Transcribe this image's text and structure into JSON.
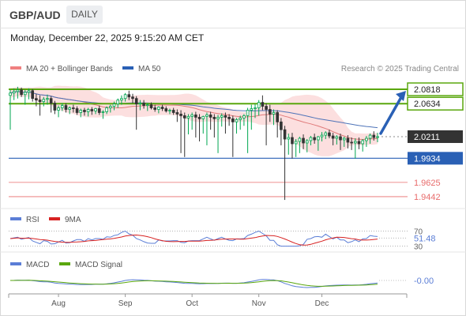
{
  "header": {
    "symbol": "GBP/AUD",
    "period_button": "DAILY"
  },
  "timestamp": "Monday, December 22, 2025 9:15:20 AM CET",
  "legend": {
    "bollinger": "MA 20 + Bollinger Bands",
    "ma50": "MA 50",
    "copyright": "Research © 2025 Trading Central"
  },
  "colors": {
    "bull": "#00a651",
    "bear": "#333333",
    "resistance": "#5aa70e",
    "support": "#2a60b5",
    "dashed": "#e86c6c",
    "band_fill": "#fbd9d9",
    "ma20": "#e07a7a",
    "ma50": "#4e73b8",
    "arrow": "#2a60b5",
    "rsi": "#5b7ed6",
    "rsi9": "#d72222",
    "macd": "#5b7ed6",
    "macd_signal": "#5aa70e"
  },
  "chart_data": [
    {
      "type": "candlestick",
      "title": "GBP/AUD",
      "x_labels": [
        "Aug",
        "Sep",
        "Oct",
        "Nov",
        "Dec"
      ],
      "ylim": [
        1.935,
        2.095
      ],
      "levels": [
        {
          "value": 2.0818,
          "label": "2.0818",
          "kind": "resistance"
        },
        {
          "value": 2.0634,
          "label": "2.0634",
          "kind": "resistance"
        },
        {
          "value": 2.0211,
          "label": "2.0211",
          "kind": "current"
        },
        {
          "value": 1.9934,
          "label": "1.9934",
          "kind": "support"
        },
        {
          "value": 1.9625,
          "label": "1.9625",
          "kind": "dashed"
        },
        {
          "value": 1.9442,
          "label": "1.9442",
          "kind": "dashed"
        }
      ],
      "candles": [
        [
          2.074,
          2.081,
          2.03,
          2.077
        ],
        [
          2.077,
          2.083,
          2.068,
          2.079
        ],
        [
          2.079,
          2.085,
          2.07,
          2.081
        ],
        [
          2.081,
          2.084,
          2.072,
          2.075
        ],
        [
          2.075,
          2.081,
          2.062,
          2.078
        ],
        [
          2.078,
          2.083,
          2.069,
          2.08
        ],
        [
          2.08,
          2.082,
          2.066,
          2.07
        ],
        [
          2.07,
          2.076,
          2.06,
          2.068
        ],
        [
          2.068,
          2.074,
          2.048,
          2.066
        ],
        [
          2.066,
          2.072,
          2.06,
          2.069
        ],
        [
          2.069,
          2.075,
          2.062,
          2.07
        ],
        [
          2.07,
          2.073,
          2.052,
          2.064
        ],
        [
          2.064,
          2.067,
          2.05,
          2.055
        ],
        [
          2.055,
          2.061,
          2.046,
          2.058
        ],
        [
          2.058,
          2.064,
          2.054,
          2.061
        ],
        [
          2.061,
          2.064,
          2.052,
          2.056
        ],
        [
          2.056,
          2.06,
          2.05,
          2.058
        ],
        [
          2.058,
          2.062,
          2.052,
          2.057
        ],
        [
          2.057,
          2.06,
          2.049,
          2.052
        ],
        [
          2.052,
          2.057,
          2.046,
          2.055
        ],
        [
          2.055,
          2.058,
          2.048,
          2.053
        ],
        [
          2.053,
          2.058,
          2.047,
          2.056
        ],
        [
          2.056,
          2.059,
          2.049,
          2.054
        ],
        [
          2.054,
          2.058,
          2.05,
          2.057
        ],
        [
          2.057,
          2.061,
          2.049,
          2.052
        ],
        [
          2.052,
          2.055,
          2.044,
          2.053
        ],
        [
          2.053,
          2.06,
          2.05,
          2.058
        ],
        [
          2.058,
          2.062,
          2.052,
          2.06
        ],
        [
          2.06,
          2.066,
          2.055,
          2.063
        ],
        [
          2.063,
          2.07,
          2.058,
          2.068
        ],
        [
          2.068,
          2.074,
          2.062,
          2.07
        ],
        [
          2.07,
          2.077,
          2.066,
          2.075
        ],
        [
          2.075,
          2.08,
          2.068,
          2.072
        ],
        [
          2.072,
          2.076,
          2.064,
          2.07
        ],
        [
          2.07,
          2.073,
          2.03,
          2.063
        ],
        [
          2.063,
          2.068,
          2.055,
          2.064
        ],
        [
          2.064,
          2.068,
          2.057,
          2.061
        ],
        [
          2.061,
          2.064,
          2.054,
          2.062
        ],
        [
          2.062,
          2.065,
          2.056,
          2.058
        ],
        [
          2.058,
          2.062,
          2.053,
          2.056
        ],
        [
          2.056,
          2.06,
          2.051,
          2.059
        ],
        [
          2.059,
          2.062,
          2.054,
          2.057
        ],
        [
          2.057,
          2.06,
          2.052,
          2.054
        ],
        [
          2.054,
          2.057,
          2.05,
          2.055
        ],
        [
          2.055,
          2.058,
          2.049,
          2.052
        ],
        [
          2.052,
          2.056,
          2.04,
          2.05
        ],
        [
          2.05,
          2.055,
          2.0,
          2.048
        ],
        [
          2.048,
          2.052,
          1.995,
          2.045
        ],
        [
          2.045,
          2.05,
          2.024,
          2.047
        ],
        [
          2.047,
          2.052,
          2.03,
          2.049
        ],
        [
          2.049,
          2.053,
          2.02,
          2.046
        ],
        [
          2.046,
          2.05,
          2.015,
          2.044
        ],
        [
          2.044,
          2.048,
          2.025,
          2.047
        ],
        [
          2.047,
          2.052,
          2.01,
          2.049
        ],
        [
          2.049,
          2.053,
          2.03,
          2.046
        ],
        [
          2.046,
          2.05,
          2.02,
          2.044
        ],
        [
          2.044,
          2.049,
          2.0,
          2.046
        ],
        [
          2.046,
          2.051,
          2.034,
          2.048
        ],
        [
          2.048,
          2.052,
          2.025,
          2.046
        ],
        [
          2.046,
          2.05,
          2.035,
          2.044
        ],
        [
          2.044,
          2.048,
          1.995,
          2.04
        ],
        [
          2.04,
          2.045,
          2.025,
          2.043
        ],
        [
          2.043,
          2.048,
          2.03,
          2.045
        ],
        [
          2.045,
          2.05,
          2.035,
          2.048
        ],
        [
          2.048,
          2.058,
          2.0,
          2.055
        ],
        [
          2.055,
          2.062,
          2.03,
          2.057
        ],
        [
          2.057,
          2.063,
          2.045,
          2.058
        ],
        [
          2.058,
          2.068,
          2.048,
          2.065
        ],
        [
          2.065,
          2.074,
          2.055,
          2.06
        ],
        [
          2.06,
          2.064,
          2.01,
          2.056
        ],
        [
          2.056,
          2.062,
          2.04,
          2.05
        ],
        [
          2.05,
          2.056,
          2.036,
          2.052
        ],
        [
          2.052,
          2.055,
          2.02,
          2.04
        ],
        [
          2.04,
          2.045,
          2.01,
          2.03
        ],
        [
          2.03,
          2.035,
          1.94,
          2.018
        ],
        [
          2.018,
          2.025,
          1.998,
          2.02
        ],
        [
          2.02,
          2.026,
          1.993,
          2.012
        ],
        [
          2.012,
          2.018,
          1.995,
          2.015
        ],
        [
          2.015,
          2.021,
          2.0,
          2.019
        ],
        [
          2.019,
          2.024,
          2.005,
          2.013
        ],
        [
          2.013,
          2.018,
          2.001,
          2.016
        ],
        [
          2.016,
          2.022,
          2.01,
          2.02
        ],
        [
          2.02,
          2.025,
          2.012,
          2.017
        ],
        [
          2.017,
          2.022,
          2.003,
          2.021
        ],
        [
          2.021,
          2.027,
          2.015,
          2.023
        ],
        [
          2.023,
          2.028,
          2.018,
          2.026
        ],
        [
          2.026,
          2.03,
          2.019,
          2.022
        ],
        [
          2.022,
          2.026,
          2.01,
          2.019
        ],
        [
          2.019,
          2.023,
          2.011,
          2.021
        ],
        [
          2.021,
          2.025,
          2.004,
          2.017
        ],
        [
          2.017,
          2.021,
          2.008,
          2.019
        ],
        [
          2.019,
          2.023,
          2.006,
          2.014
        ],
        [
          2.014,
          2.02,
          2.004,
          2.013
        ],
        [
          2.013,
          2.019,
          1.993,
          2.015
        ],
        [
          2.015,
          2.02,
          2.005,
          2.012
        ],
        [
          2.012,
          2.018,
          2.002,
          2.016
        ],
        [
          2.016,
          2.022,
          2.008,
          2.019
        ],
        [
          2.019,
          2.025,
          2.012,
          2.023
        ],
        [
          2.023,
          2.028,
          2.016,
          2.02
        ],
        [
          2.02,
          2.026,
          2.014,
          2.021
        ]
      ]
    },
    {
      "type": "line",
      "title": "RSI",
      "series": [
        {
          "name": "RSI"
        },
        {
          "name": "9MA"
        }
      ],
      "levels": [
        {
          "value": 70,
          "label": "70"
        },
        {
          "value": 30,
          "label": "30"
        }
      ],
      "current_value": "51.48",
      "ylim": [
        25,
        75
      ]
    },
    {
      "type": "line",
      "title": "MACD",
      "series": [
        {
          "name": "MACD"
        },
        {
          "name": "MACD Signal"
        }
      ],
      "current_value": "-0.00"
    }
  ]
}
